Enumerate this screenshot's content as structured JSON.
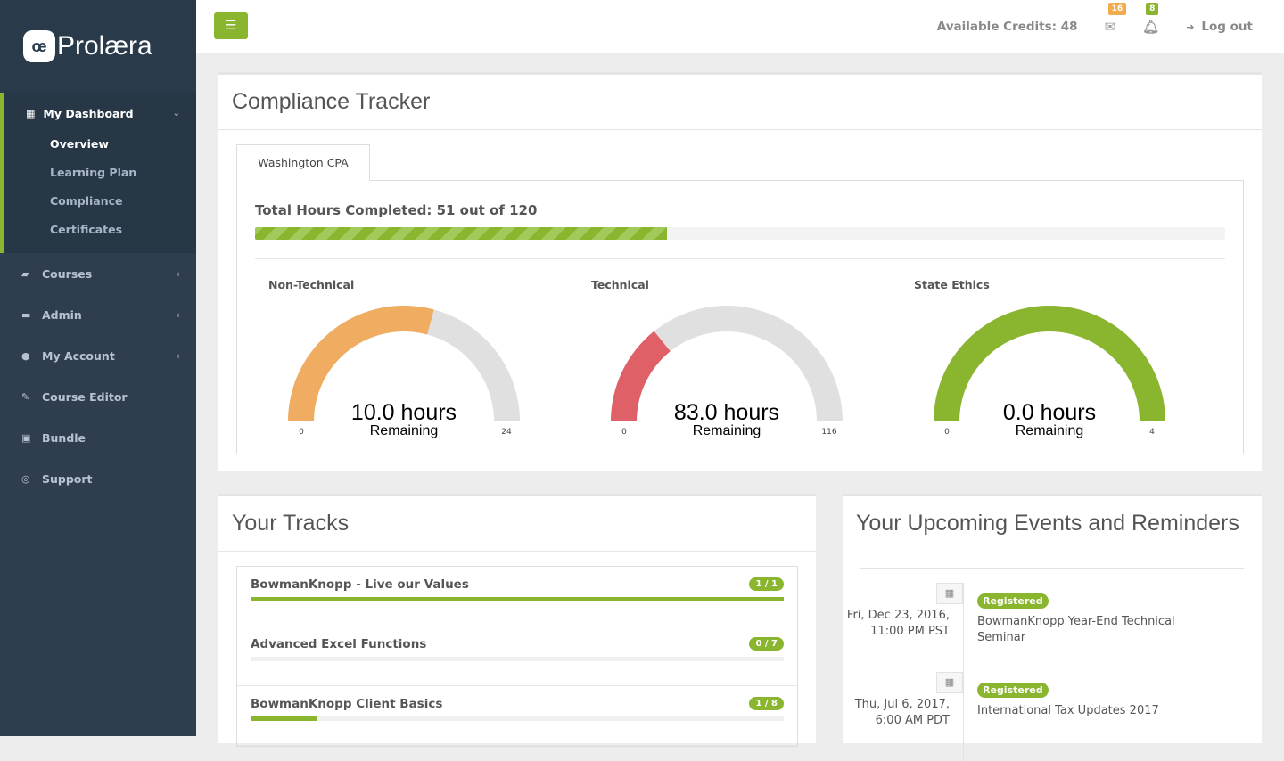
{
  "brand": {
    "name": "Prolæra",
    "mark": "œ"
  },
  "sidebar": {
    "dashboard": "My Dashboard",
    "sub": [
      "Overview",
      "Learning Plan",
      "Compliance",
      "Certificates"
    ],
    "items": [
      {
        "label": "Courses",
        "icon": "book-icon",
        "glyph": "▰",
        "chev": true
      },
      {
        "label": "Admin",
        "icon": "briefcase-icon",
        "glyph": "▬",
        "chev": true
      },
      {
        "label": "My Account",
        "icon": "user-icon",
        "glyph": "●",
        "chev": true
      },
      {
        "label": "Course Editor",
        "icon": "edit-icon",
        "glyph": "✎",
        "chev": false
      },
      {
        "label": "Bundle",
        "icon": "suitcase-icon",
        "glyph": "▣",
        "chev": false
      },
      {
        "label": "Support",
        "icon": "lifebuoy-icon",
        "glyph": "◎",
        "chev": false
      }
    ]
  },
  "topbar": {
    "credits": "Available Credits: 48",
    "mail_count": "16",
    "notif_count": "8",
    "logout": "Log out",
    "colors": {
      "mail": "#f0ad4e",
      "notif": "#8ab52f"
    }
  },
  "compliance": {
    "title": "Compliance Tracker",
    "tab": "Washington CPA",
    "total": "Total Hours Completed: 51 out of 120",
    "completed": 51,
    "required": 120,
    "gauges": [
      {
        "label": "Non-Technical",
        "remaining": "10.0 hours",
        "sub": "Remaining",
        "min": "0",
        "max": "24",
        "value": 14,
        "total": 24,
        "color": "#f0ad62"
      },
      {
        "label": "Technical",
        "remaining": "83.0 hours",
        "sub": "Remaining",
        "min": "0",
        "max": "116",
        "value": 33,
        "total": 116,
        "color": "#e06068"
      },
      {
        "label": "State Ethics",
        "remaining": "0.0 hours",
        "sub": "Remaining",
        "min": "0",
        "max": "4",
        "value": 4,
        "total": 4,
        "color": "#8ab52f"
      }
    ]
  },
  "tracks": {
    "title": "Your Tracks",
    "items": [
      {
        "name": "BowmanKnopp - Live our Values",
        "count": "1 / 1",
        "progress": 1
      },
      {
        "name": "Advanced Excel Functions",
        "count": "0 / 7",
        "progress": 0
      },
      {
        "name": "BowmanKnopp Client Basics",
        "count": "1 / 8",
        "progress": 0.125
      }
    ]
  },
  "events": {
    "title": "Your Upcoming Events and Reminders",
    "items": [
      {
        "date": "Fri, Dec 23, 2016, 11:00 PM PST",
        "status": "Registered",
        "title": "BowmanKnopp Year-End Technical Seminar"
      },
      {
        "date": "Thu, Jul 6, 2017, 6:00 AM PDT",
        "status": "Registered",
        "title": "International Tax Updates 2017"
      }
    ]
  }
}
